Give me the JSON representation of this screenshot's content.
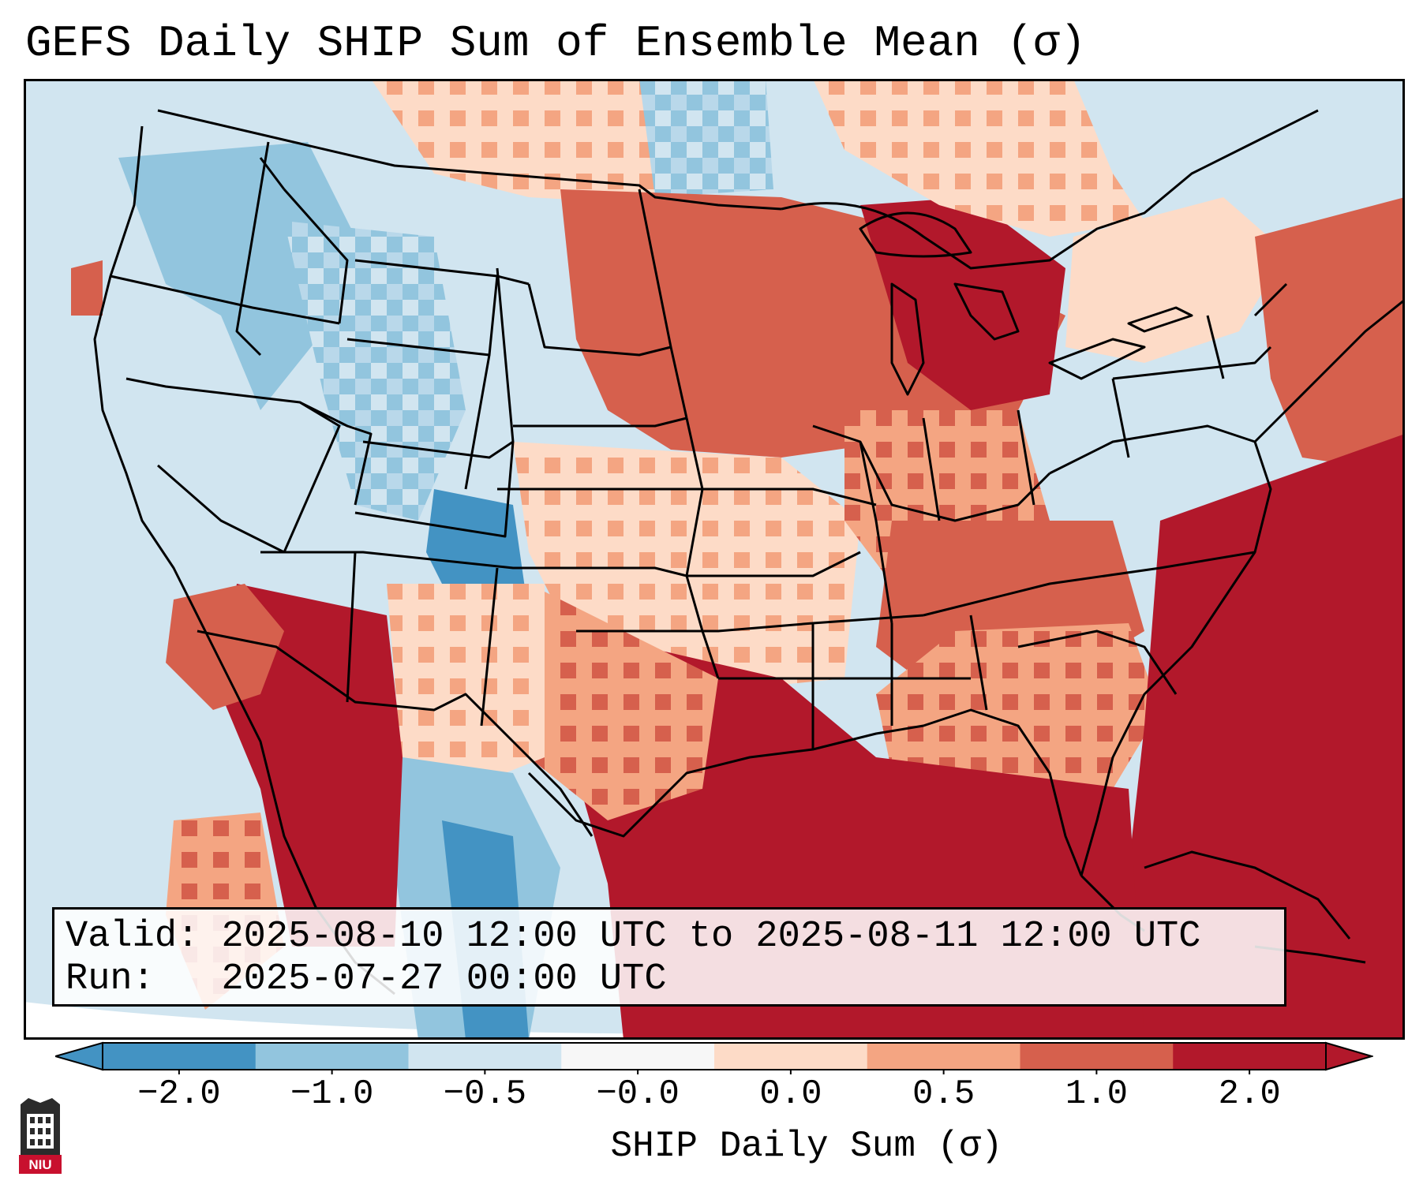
{
  "title": "GEFS Daily SHIP Sum of Ensemble Mean (σ)",
  "info": {
    "valid_label": "Valid:",
    "valid_value": "2025-08-10 12:00 UTC to 2025-08-11 12:00 UTC",
    "run_label": "Run:",
    "run_value": "2025-07-27 00:00 UTC"
  },
  "colorbar": {
    "label": "SHIP Daily Sum (σ)",
    "ticks": [
      "−2.0",
      "−1.0",
      "−0.5",
      "−0.0",
      "0.0",
      "0.5",
      "1.0",
      "2.0"
    ],
    "colors": [
      "#4393c3",
      "#92c5de",
      "#d1e5f0",
      "#f7f7f7",
      "#fddbc7",
      "#f4a582",
      "#d6604d",
      "#b2182b"
    ],
    "extend": "both"
  },
  "logo": {
    "text": "NIU",
    "icon": "niu-logo-icon"
  }
}
